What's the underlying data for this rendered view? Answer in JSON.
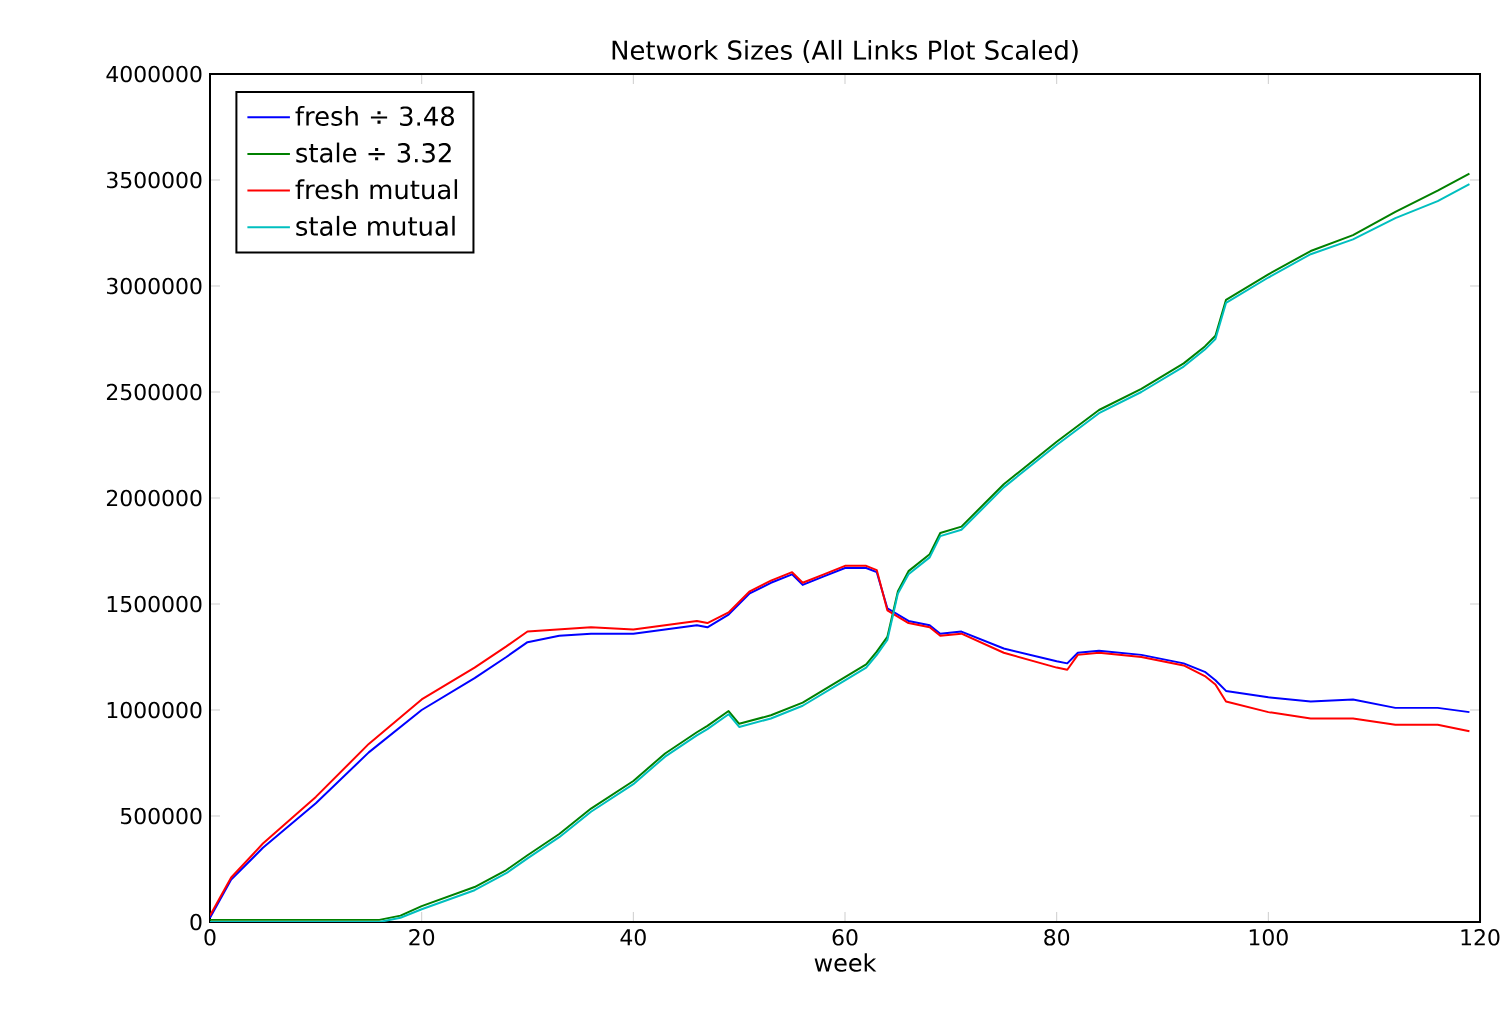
{
  "chart_data": {
    "type": "line",
    "title": "Network Sizes (All Links Plot Scaled)",
    "xlabel": "week",
    "xlim": [
      0,
      120
    ],
    "ylim": [
      0,
      4000000
    ],
    "xticks": [
      0,
      20,
      40,
      60,
      80,
      100,
      120
    ],
    "yticks": [
      0,
      500000,
      1000000,
      1500000,
      2000000,
      2500000,
      3000000,
      3500000,
      4000000
    ],
    "grid": false,
    "legend": "top left",
    "marker": "none",
    "line_style": "solid",
    "series": [
      {
        "name": "fresh ÷ 3.48",
        "color": "#0000ff",
        "x": [
          0,
          2,
          5,
          10,
          15,
          20,
          25,
          28,
          30,
          33,
          36,
          40,
          43,
          46,
          47,
          49,
          51,
          53,
          55,
          56,
          58,
          60,
          62,
          63,
          64,
          66,
          68,
          69,
          71,
          75,
          80,
          81,
          82,
          84,
          88,
          92,
          94,
          95,
          96,
          100,
          104,
          108,
          112,
          116,
          119
        ],
        "values": [
          20000,
          200000,
          350000,
          560000,
          800000,
          1000000,
          1150000,
          1250000,
          1320000,
          1350000,
          1360000,
          1360000,
          1380000,
          1400000,
          1390000,
          1450000,
          1550000,
          1600000,
          1640000,
          1590000,
          1630000,
          1670000,
          1670000,
          1650000,
          1480000,
          1420000,
          1400000,
          1360000,
          1370000,
          1290000,
          1230000,
          1220000,
          1270000,
          1280000,
          1260000,
          1220000,
          1180000,
          1140000,
          1090000,
          1060000,
          1040000,
          1050000,
          1010000,
          1010000,
          990000
        ]
      },
      {
        "name": "stale ÷ 3.32",
        "color": "#008000",
        "x": [
          0,
          16,
          18,
          20,
          25,
          28,
          30,
          33,
          36,
          40,
          43,
          46,
          47,
          49,
          50,
          53,
          56,
          58,
          60,
          62,
          63,
          64,
          65,
          66,
          68,
          69,
          71,
          75,
          80,
          84,
          88,
          92,
          94,
          95,
          96,
          100,
          104,
          108,
          112,
          116,
          119
        ],
        "values": [
          10000,
          10000,
          30000,
          75000,
          165000,
          245000,
          315000,
          415000,
          535000,
          665000,
          795000,
          895000,
          925000,
          995000,
          935000,
          975000,
          1035000,
          1095000,
          1155000,
          1215000,
          1275000,
          1345000,
          1560000,
          1655000,
          1735000,
          1835000,
          1865000,
          2065000,
          2265000,
          2415000,
          2515000,
          2635000,
          2715000,
          2765000,
          2935000,
          3055000,
          3165000,
          3240000,
          3350000,
          3450000,
          3530000
        ]
      },
      {
        "name": "fresh mutual",
        "color": "#ff0000",
        "x": [
          0,
          2,
          5,
          10,
          15,
          20,
          25,
          28,
          30,
          33,
          36,
          40,
          43,
          46,
          47,
          49,
          51,
          53,
          55,
          56,
          58,
          60,
          62,
          63,
          64,
          66,
          68,
          69,
          71,
          75,
          80,
          81,
          82,
          84,
          88,
          92,
          94,
          95,
          96,
          100,
          104,
          108,
          112,
          116,
          119
        ],
        "values": [
          30000,
          210000,
          370000,
          590000,
          840000,
          1050000,
          1200000,
          1300000,
          1370000,
          1380000,
          1390000,
          1380000,
          1400000,
          1420000,
          1410000,
          1460000,
          1560000,
          1610000,
          1650000,
          1600000,
          1640000,
          1680000,
          1680000,
          1660000,
          1470000,
          1410000,
          1390000,
          1350000,
          1360000,
          1270000,
          1200000,
          1190000,
          1260000,
          1270000,
          1250000,
          1210000,
          1160000,
          1120000,
          1040000,
          990000,
          960000,
          960000,
          930000,
          930000,
          900000
        ]
      },
      {
        "name": "stale mutual",
        "color": "#00bfbf",
        "x": [
          0,
          16,
          18,
          20,
          25,
          28,
          30,
          33,
          36,
          40,
          43,
          46,
          47,
          49,
          50,
          53,
          56,
          58,
          60,
          62,
          63,
          64,
          65,
          66,
          68,
          69,
          71,
          75,
          80,
          84,
          88,
          92,
          94,
          95,
          96,
          100,
          104,
          108,
          112,
          116,
          119
        ],
        "values": [
          0,
          0,
          20000,
          60000,
          150000,
          230000,
          300000,
          400000,
          520000,
          650000,
          780000,
          880000,
          910000,
          980000,
          920000,
          960000,
          1020000,
          1080000,
          1140000,
          1200000,
          1260000,
          1330000,
          1550000,
          1640000,
          1720000,
          1820000,
          1850000,
          2050000,
          2250000,
          2400000,
          2500000,
          2620000,
          2700000,
          2750000,
          2920000,
          3040000,
          3150000,
          3220000,
          3320000,
          3400000,
          3480000
        ]
      }
    ]
  }
}
